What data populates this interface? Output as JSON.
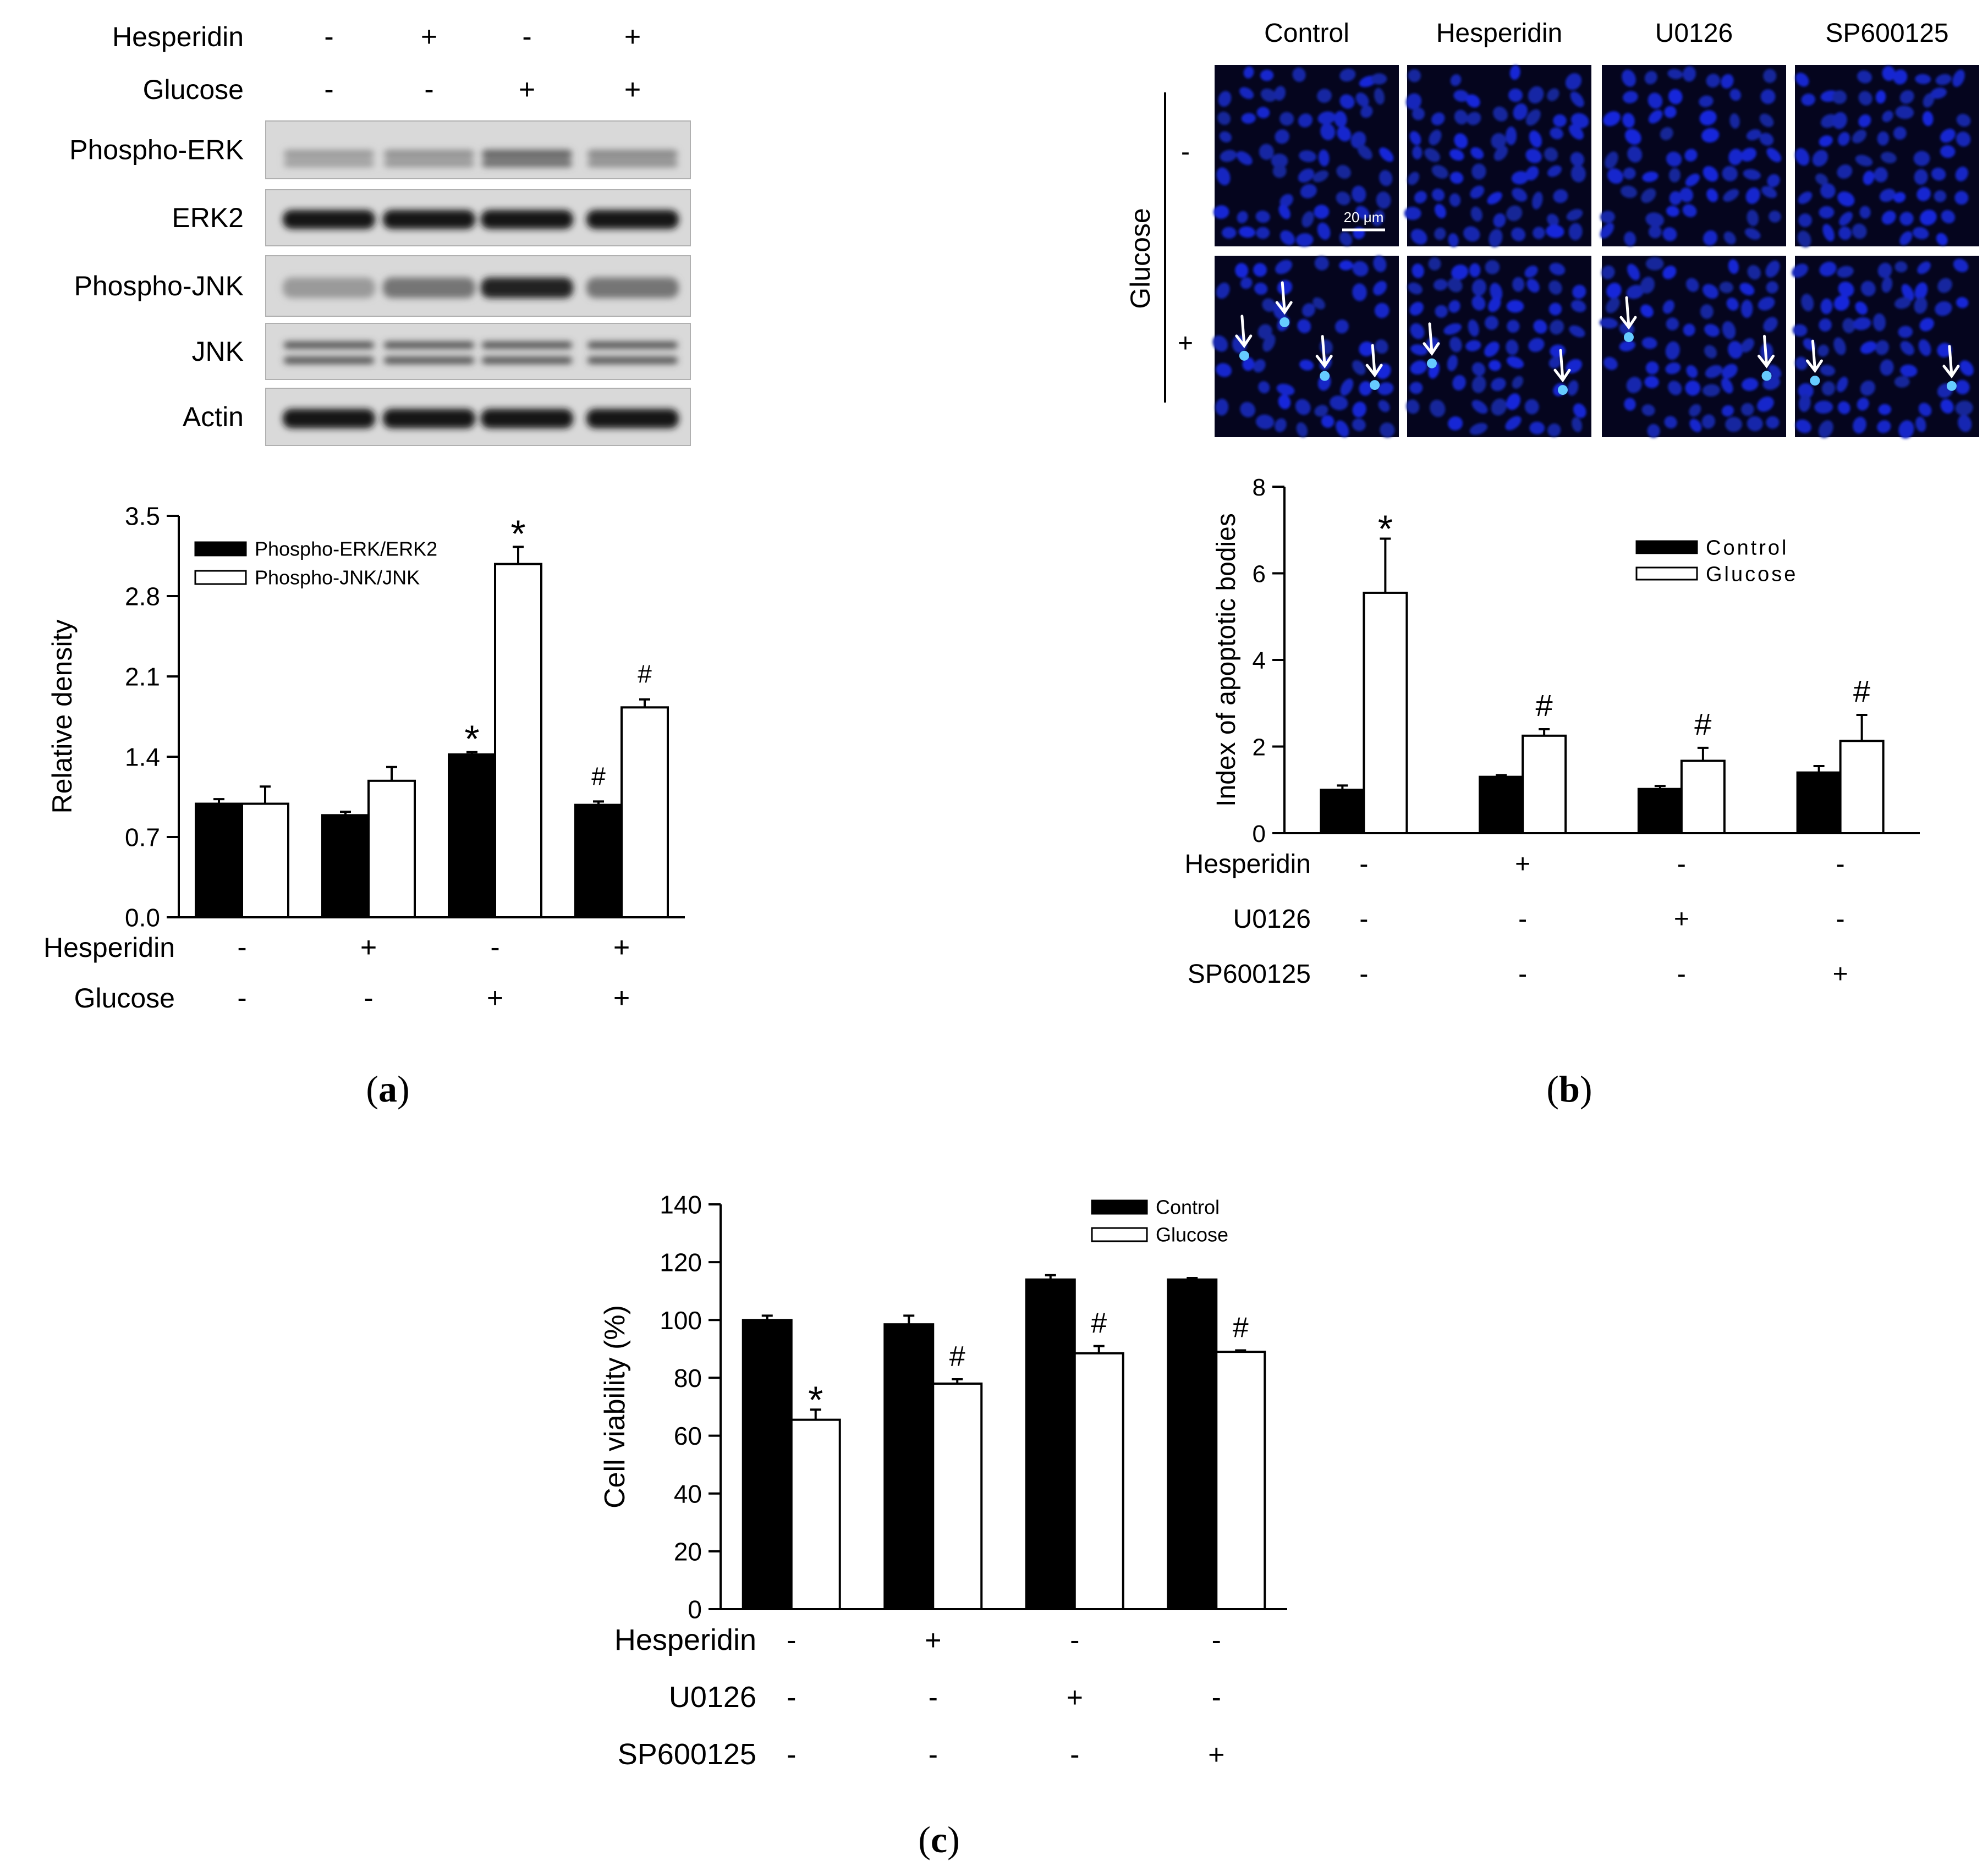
{
  "panel_a": {
    "letter": "a",
    "blot": {
      "treatments": [
        {
          "label": "Hesperidin",
          "signs": [
            "-",
            "+",
            "-",
            "+"
          ]
        },
        {
          "label": "Glucose",
          "signs": [
            "-",
            "-",
            "+",
            "+"
          ]
        }
      ],
      "rows": [
        {
          "label": "Phospho-ERK",
          "bands": [
            0.25,
            0.3,
            0.55,
            0.35
          ]
        },
        {
          "label": "ERK2",
          "bands": [
            0.95,
            0.95,
            0.95,
            0.95
          ]
        },
        {
          "label": "Phospho-JNK",
          "bands": [
            0.25,
            0.45,
            0.9,
            0.45
          ]
        },
        {
          "label": "JNK",
          "bands": [
            0.7,
            0.7,
            0.7,
            0.7
          ]
        },
        {
          "label": "Actin",
          "bands": [
            0.95,
            0.95,
            0.95,
            0.95
          ]
        }
      ]
    }
  },
  "panel_b": {
    "letter": "b",
    "micro": {
      "columns": [
        "Control",
        "Hesperidin",
        "U0126",
        "SP600125"
      ],
      "row_axis_label": "Glucose",
      "row_signs": [
        "-",
        "+"
      ],
      "scale_bar": "20 μm",
      "arrow_counts": [
        4,
        2,
        2,
        2
      ]
    }
  },
  "panel_c": {
    "letter": "c"
  },
  "chart_data": [
    {
      "id": "a",
      "type": "bar",
      "title": "",
      "xlabel": "",
      "ylabel": "Relative density",
      "ylim": [
        0,
        3.5
      ],
      "yticks": [
        "0.0",
        "0.7",
        "1.4",
        "2.1",
        "2.8",
        "3.5"
      ],
      "groups": 4,
      "series": [
        {
          "name": "Phospho-ERK/ERK2",
          "fill": "#000000",
          "values": [
            0.99,
            0.89,
            1.42,
            0.98
          ],
          "errors": [
            0.04,
            0.03,
            0.02,
            0.03
          ],
          "marks": [
            "",
            "",
            "*",
            "#"
          ]
        },
        {
          "name": "Phospho-JNK/JNK",
          "fill": "#ffffff",
          "values": [
            0.99,
            1.19,
            3.08,
            1.83
          ],
          "errors": [
            0.15,
            0.12,
            0.15,
            0.07
          ],
          "marks": [
            "",
            "",
            "*",
            "#"
          ]
        }
      ],
      "treatments": [
        {
          "label": "Hesperidin",
          "signs": [
            "-",
            "+",
            "-",
            "+"
          ]
        },
        {
          "label": "Glucose",
          "signs": [
            "-",
            "-",
            "+",
            "+"
          ]
        }
      ],
      "legend_position": "top-left"
    },
    {
      "id": "b",
      "type": "bar",
      "title": "",
      "xlabel": "",
      "ylabel": "Index of apoptotic bodies",
      "ylim": [
        0,
        8
      ],
      "yticks": [
        "0",
        "2",
        "4",
        "6",
        "8"
      ],
      "groups": 4,
      "series": [
        {
          "name": "Control",
          "fill": "#000000",
          "values": [
            1.0,
            1.3,
            1.02,
            1.4
          ],
          "errors": [
            0.1,
            0.04,
            0.07,
            0.15
          ],
          "marks": [
            "",
            "",
            "",
            ""
          ]
        },
        {
          "name": "Glucose",
          "fill": "#ffffff",
          "values": [
            5.55,
            2.25,
            1.67,
            2.13
          ],
          "errors": [
            1.25,
            0.15,
            0.3,
            0.6
          ],
          "marks": [
            "*",
            "#",
            "#",
            "#"
          ]
        }
      ],
      "treatments": [
        {
          "label": "Hesperidin",
          "signs": [
            "-",
            "+",
            "-",
            "-"
          ]
        },
        {
          "label": "U0126",
          "signs": [
            "-",
            "-",
            "+",
            "-"
          ]
        },
        {
          "label": "SP600125",
          "signs": [
            "-",
            "-",
            "-",
            "+"
          ]
        }
      ],
      "legend_position": "top-right"
    },
    {
      "id": "c",
      "type": "bar",
      "title": "",
      "xlabel": "",
      "ylabel": "Cell viability (%)",
      "ylim": [
        0,
        140
      ],
      "yticks": [
        "0",
        "20",
        "40",
        "60",
        "80",
        "100",
        "120",
        "140"
      ],
      "groups": 4,
      "series": [
        {
          "name": "Control",
          "fill": "#000000",
          "values": [
            100,
            98.5,
            114,
            114
          ],
          "errors": [
            1.5,
            3,
            1.5,
            0.5
          ],
          "marks": [
            "",
            "",
            "",
            ""
          ]
        },
        {
          "name": "Glucose",
          "fill": "#ffffff",
          "values": [
            65.5,
            78,
            88.5,
            89
          ],
          "errors": [
            3.5,
            1.5,
            2.5,
            0.5
          ],
          "marks": [
            "*",
            "#",
            "#",
            "#"
          ]
        }
      ],
      "treatments": [
        {
          "label": "Hesperidin",
          "signs": [
            "-",
            "+",
            "-",
            "-"
          ]
        },
        {
          "label": "U0126",
          "signs": [
            "-",
            "-",
            "+",
            "-"
          ]
        },
        {
          "label": "SP600125",
          "signs": [
            "-",
            "-",
            "-",
            "+"
          ]
        }
      ],
      "legend_position": "top-right"
    }
  ]
}
